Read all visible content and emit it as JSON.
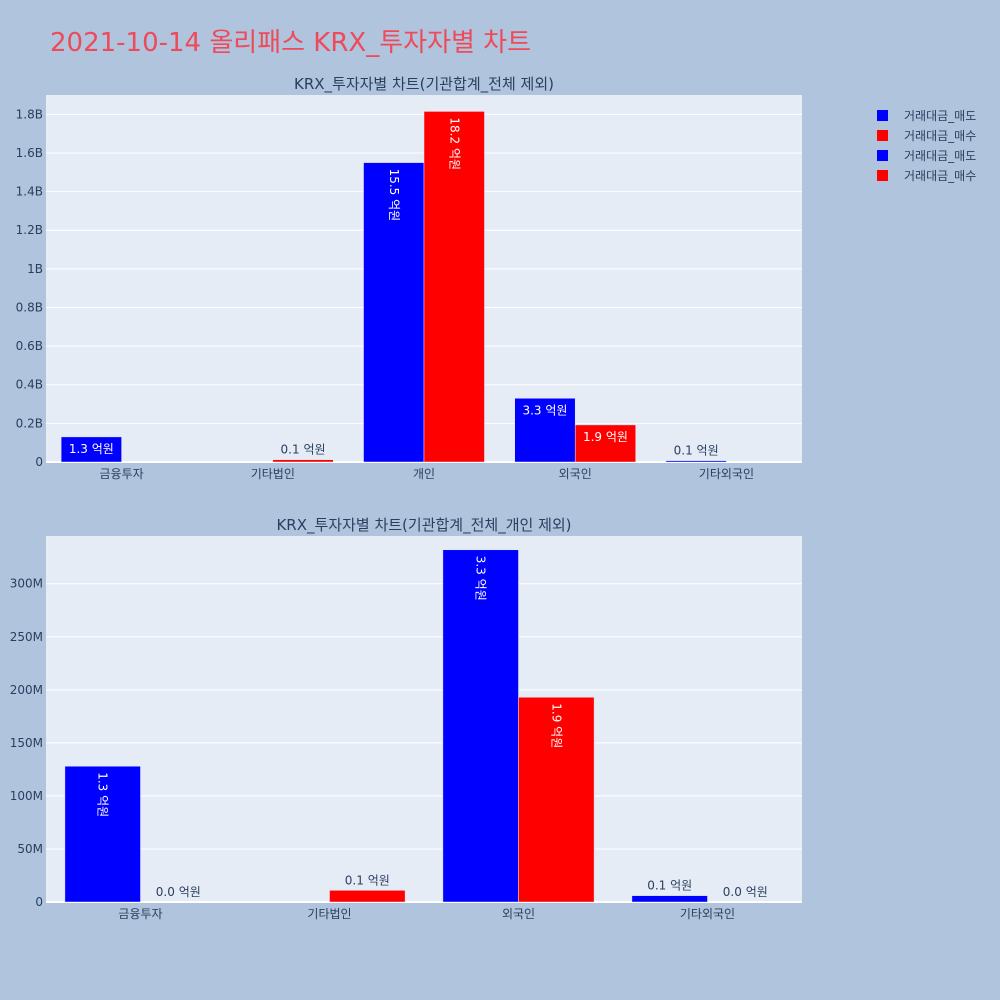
{
  "page": {
    "title": "2021-10-14 올리패스 KRX_투자자별 차트"
  },
  "legend": {
    "items": [
      {
        "label": "거래대금_매도",
        "color": "#0000ff"
      },
      {
        "label": "거래대금_매수",
        "color": "#ff0000"
      },
      {
        "label": "거래대금_매도",
        "color": "#0000ff"
      },
      {
        "label": "거래대금_매수",
        "color": "#ff0000"
      }
    ]
  },
  "chart_data": [
    {
      "type": "bar",
      "title": "KRX_투자자별 차트(기관합계_전체 제외)",
      "categories": [
        "금융투자",
        "기타법인",
        "개인",
        "외국인",
        "기타외국인"
      ],
      "ylim": [
        0,
        1900000000
      ],
      "ytick_values": [
        0,
        200000000,
        400000000,
        600000000,
        800000000,
        1000000000,
        1200000000,
        1400000000,
        1600000000,
        1800000000
      ],
      "ytick_labels": [
        "0",
        "0.2B",
        "0.4B",
        "0.6B",
        "0.8B",
        "1B",
        "1.2B",
        "1.4B",
        "1.6B",
        "1.8B"
      ],
      "series": [
        {
          "name": "거래대금_매도",
          "color": "#0000ff",
          "values": [
            130000000,
            null,
            1550000000,
            330000000,
            7000000
          ],
          "labels": [
            "1.3 억원",
            "",
            "15.5 억원",
            "3.3 억원",
            "0.1 억원"
          ]
        },
        {
          "name": "거래대금_매수",
          "color": "#ff0000",
          "values": [
            null,
            12000000,
            1815000000,
            192000000,
            null
          ],
          "labels": [
            "",
            "0.1 억원",
            "18.2 억원",
            "1.9 억원",
            ""
          ]
        }
      ],
      "grid": true,
      "legend_position": "right"
    },
    {
      "type": "bar",
      "title": "KRX_투자자별 차트(기관합계_전체_개인 제외)",
      "categories": [
        "금융투자",
        "기타법인",
        "외국인",
        "기타외국인"
      ],
      "ylim": [
        0,
        345000000
      ],
      "ytick_values": [
        0,
        50000000,
        100000000,
        150000000,
        200000000,
        250000000,
        300000000
      ],
      "ytick_labels": [
        "0",
        "50M",
        "100M",
        "150M",
        "200M",
        "250M",
        "300M"
      ],
      "series": [
        {
          "name": "거래대금_매도",
          "color": "#0000ff",
          "values": [
            128000000,
            null,
            332000000,
            6000000
          ],
          "labels": [
            "1.3 억원",
            "",
            "3.3 억원",
            "0.1 억원"
          ]
        },
        {
          "name": "거래대금_매수",
          "color": "#ff0000",
          "values": [
            0,
            11000000,
            193000000,
            0
          ],
          "labels": [
            "0.0 억원",
            "0.1 억원",
            "1.9 억원",
            "0.0 억원"
          ]
        }
      ],
      "grid": true,
      "legend_position": "right"
    }
  ]
}
